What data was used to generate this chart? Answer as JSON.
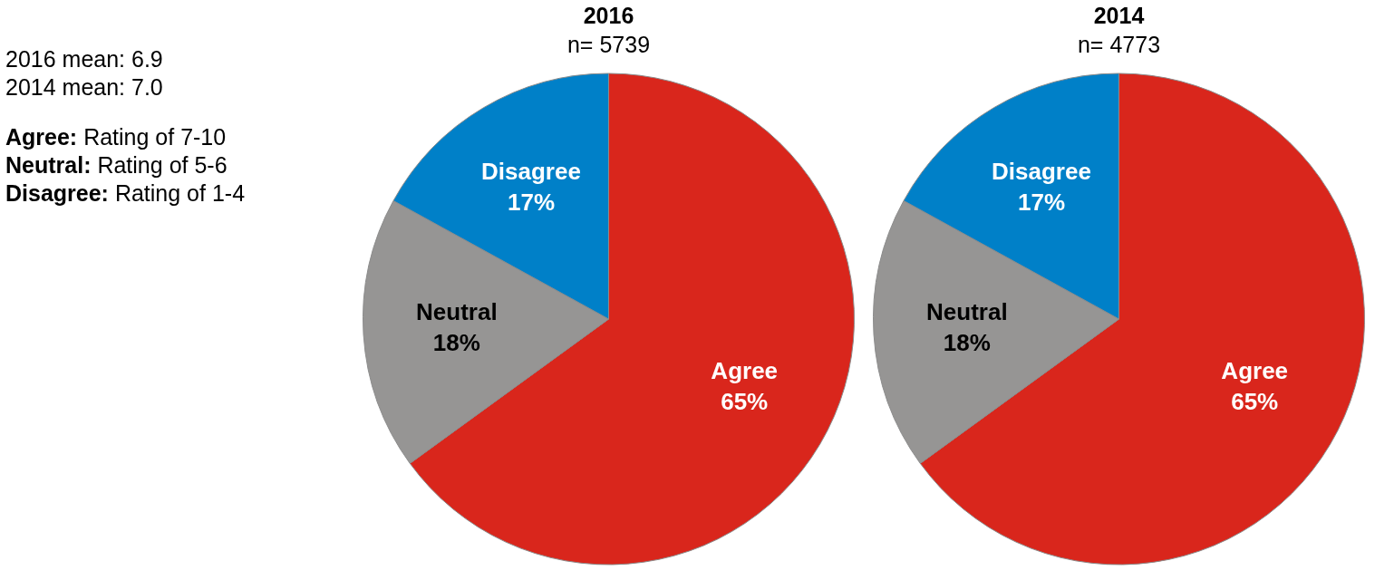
{
  "chart_data": [
    {
      "type": "other",
      "annotations": [
        "2016 mean: 6.9",
        "2014 mean: 7.0",
        "Agree: Rating of 7-10",
        "Neutral: Rating of 5-6",
        "Disagree: Rating of 1-4"
      ]
    },
    {
      "type": "pie",
      "title": "2016",
      "subtitle": "n= 5739",
      "categories": [
        "Agree",
        "Neutral",
        "Disagree"
      ],
      "values": [
        65,
        18,
        17
      ],
      "colors": [
        "#d9261c",
        "#969594",
        "#0080c8"
      ],
      "value_labels": [
        "65%",
        "18%",
        "17%"
      ],
      "legend": false
    },
    {
      "type": "pie",
      "title": "2014",
      "subtitle": "n= 4773",
      "categories": [
        "Agree",
        "Neutral",
        "Disagree"
      ],
      "values": [
        65,
        18,
        17
      ],
      "colors": [
        "#d9261c",
        "#969594",
        "#0080c8"
      ],
      "value_labels": [
        "65%",
        "18%",
        "17%"
      ],
      "legend": false
    }
  ]
}
